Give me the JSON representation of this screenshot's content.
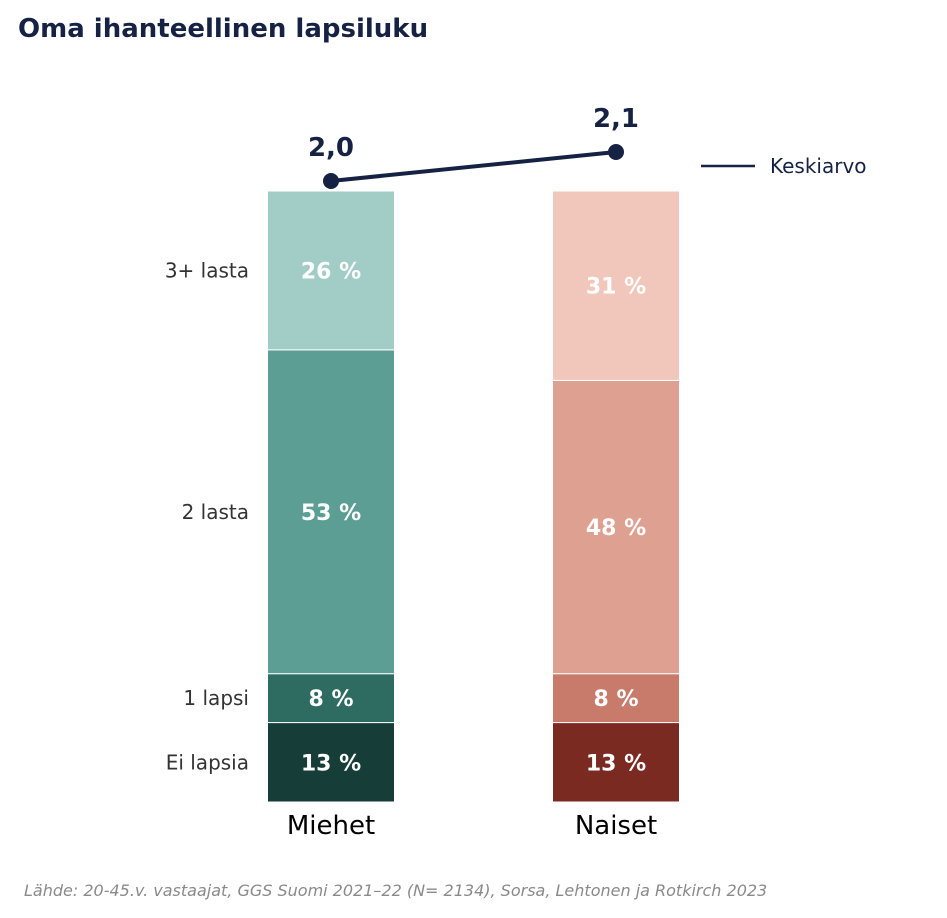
{
  "chart_data": {
    "type": "bar",
    "stacked": true,
    "title": "Oma ihanteellinen lapsiluku",
    "source": "Lähde: 20-45.v. vastaajat, GGS Suomi 2021–22 (N= 2134), Sorsa, Lehtonen ja Rotkirch 2023",
    "x": [
      "Miehet",
      "Naiset"
    ],
    "value_suffix": " %",
    "series": [
      {
        "name": "Ei lapsia",
        "values": [
          13,
          13
        ],
        "colors": [
          "#163d37",
          "#7b2a22"
        ]
      },
      {
        "name": "1 lapsi",
        "values": [
          8,
          8
        ],
        "colors": [
          "#2e6b60",
          "#c87b6b"
        ]
      },
      {
        "name": "2 lasta",
        "values": [
          53,
          48
        ],
        "colors": [
          "#5c9e94",
          "#dea090"
        ]
      },
      {
        "name": "3+ lasta",
        "values": [
          26,
          31
        ],
        "colors": [
          "#a2cdc7",
          "#f1c7bc"
        ]
      }
    ],
    "average": {
      "name": "Keskiarvo",
      "values": [
        2.0,
        2.1
      ],
      "labels": [
        "2,0",
        "2,1"
      ],
      "color": "#162244"
    },
    "legend_position": "top-right",
    "grid": false
  }
}
